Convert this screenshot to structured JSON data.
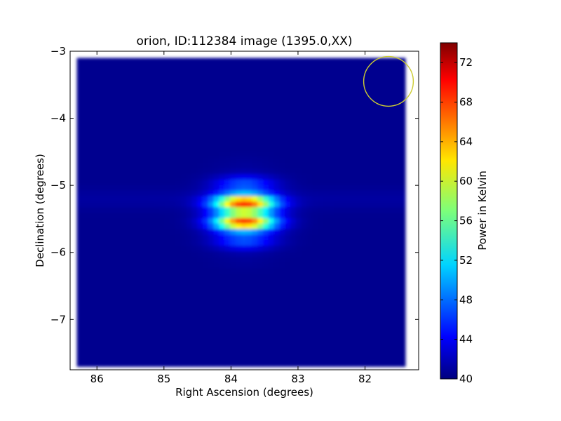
{
  "chart_data": {
    "type": "heatmap",
    "title": "orion, ID:112384 image (1395.0,XX)",
    "xlabel": "Right Ascension (degrees)",
    "ylabel": "Declination (degrees)",
    "x_axis_inverted": true,
    "xlim": [
      86.4,
      81.2
    ],
    "ylim": [
      -7.75,
      -3.0
    ],
    "xticks": [
      86,
      85,
      84,
      83,
      82
    ],
    "yticks": [
      -3,
      -4,
      -5,
      -6,
      -7
    ],
    "map": {
      "ra_range": [
        86.3,
        81.4
      ],
      "dec_range": [
        -7.7,
        -3.1
      ],
      "background_level": 40.5,
      "source": {
        "ra_center": 83.8,
        "dec_center": -5.4,
        "peak": 74,
        "ra_sigma": 0.32,
        "dec_sigma": 0.25
      },
      "fringe_pattern": "horizontal striping across source"
    },
    "beam_marker": {
      "shape": "circle",
      "ra": 81.65,
      "dec": -3.45,
      "radius_deg": 0.37,
      "color": "#cccc33"
    },
    "colorbar": {
      "label": "Power in Kelvin",
      "range": [
        40,
        74
      ],
      "ticks": [
        40,
        44,
        48,
        52,
        56,
        60,
        64,
        68,
        72
      ],
      "colormap": "jet"
    }
  }
}
